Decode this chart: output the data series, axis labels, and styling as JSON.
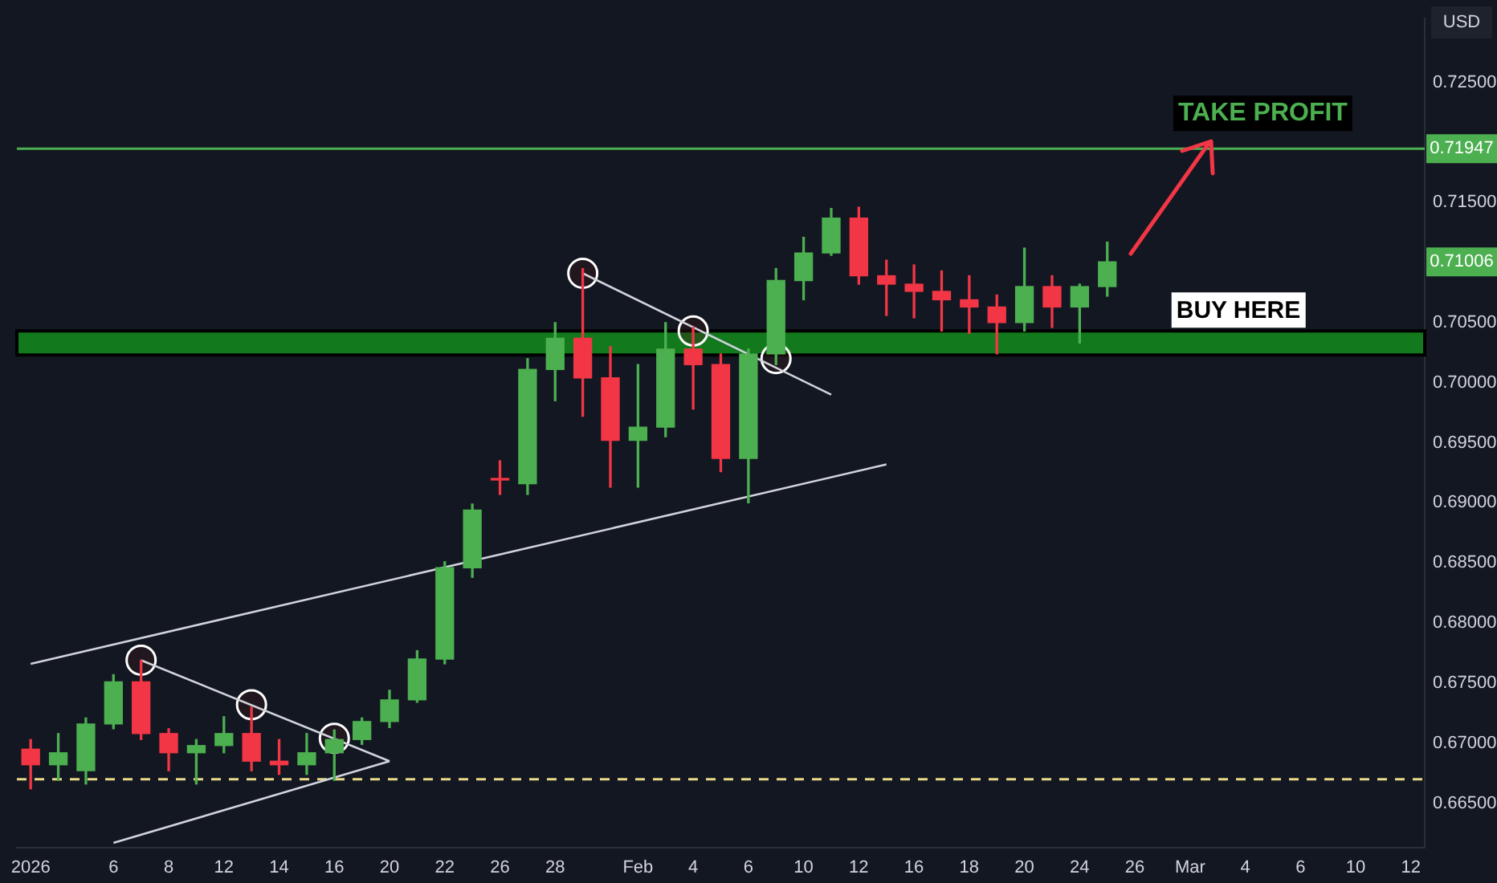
{
  "chart_data": {
    "type": "candlestick",
    "ylabel": "USD",
    "categories": [
      "2026",
      null,
      null,
      "6",
      null,
      "8",
      null,
      "12",
      null,
      "14",
      null,
      "16",
      null,
      "20",
      null,
      "22",
      null,
      "26",
      null,
      "28",
      null,
      null,
      "Feb",
      null,
      "4",
      null,
      "6",
      null,
      "10",
      null,
      "12",
      null,
      "16",
      null,
      "18",
      null,
      "20",
      null,
      "24",
      null,
      "26",
      null,
      "Mar",
      null,
      "4",
      null,
      "6",
      null,
      "10",
      null,
      "12"
    ],
    "ohlc": [
      [
        0.6695,
        0.6703,
        0.6662,
        0.6682
      ],
      [
        0.6682,
        0.6708,
        0.6669,
        0.6692
      ],
      [
        0.6677,
        0.6721,
        0.6666,
        0.6716
      ],
      [
        0.6716,
        0.6757,
        0.6712,
        0.6751
      ],
      [
        0.6751,
        0.6769,
        0.6703,
        0.6708
      ],
      [
        0.6708,
        0.6712,
        0.6677,
        0.6692
      ],
      [
        0.6692,
        0.6703,
        0.6666,
        0.6698
      ],
      [
        0.6698,
        0.6722,
        0.6692,
        0.6708
      ],
      [
        0.6708,
        0.673,
        0.6677,
        0.6685
      ],
      [
        0.6685,
        0.6703,
        0.6674,
        0.6682
      ],
      [
        0.6682,
        0.6708,
        0.6674,
        0.6692
      ],
      [
        0.6692,
        0.6711,
        0.6669,
        0.6703
      ],
      [
        0.6703,
        0.6721,
        0.6699,
        0.6718
      ],
      [
        0.6718,
        0.6744,
        0.6713,
        0.6736
      ],
      [
        0.6736,
        0.6777,
        0.6734,
        0.677
      ],
      [
        0.677,
        0.6851,
        0.6766,
        0.6846
      ],
      [
        0.6846,
        0.6899,
        0.6838,
        0.6894
      ],
      [
        0.692,
        0.6935,
        0.6907,
        0.6919
      ],
      [
        0.6916,
        0.702,
        0.6907,
        0.7011
      ],
      [
        0.7011,
        0.705,
        0.6985,
        0.7037
      ],
      [
        0.7037,
        0.7095,
        0.6972,
        0.7004
      ],
      [
        0.7004,
        0.703,
        0.6913,
        0.6952
      ],
      [
        0.6952,
        0.7015,
        0.6913,
        0.6963
      ],
      [
        0.6963,
        0.705,
        0.6955,
        0.7028
      ],
      [
        0.7028,
        0.7046,
        0.6978,
        0.7015
      ],
      [
        0.7015,
        0.7024,
        0.6926,
        0.6937
      ],
      [
        0.6937,
        0.7028,
        0.69,
        0.7024
      ],
      [
        0.7024,
        0.7095,
        0.7015,
        0.7085
      ],
      [
        0.7085,
        0.7121,
        0.7069,
        0.7108
      ],
      [
        0.7108,
        0.7145,
        0.7106,
        0.7137
      ],
      [
        0.7137,
        0.7146,
        0.7082,
        0.7089
      ],
      [
        0.7089,
        0.7102,
        0.7056,
        0.7082
      ],
      [
        0.7082,
        0.7098,
        0.7054,
        0.7076
      ],
      [
        0.7076,
        0.7093,
        0.7043,
        0.7069
      ],
      [
        0.7069,
        0.7089,
        0.7041,
        0.7063
      ],
      [
        0.7063,
        0.7073,
        0.7024,
        0.705
      ],
      [
        0.705,
        0.7112,
        0.7043,
        0.708
      ],
      [
        0.708,
        0.7089,
        0.7046,
        0.7063
      ],
      [
        0.7063,
        0.7082,
        0.7033,
        0.708
      ],
      [
        0.708,
        0.7117,
        0.7072,
        0.71006
      ],
      null,
      null,
      null,
      null,
      null,
      null,
      null,
      null,
      null,
      null,
      null
    ],
    "series": [
      {
        "type": "line",
        "color": "#d1d4dc",
        "values": [
          0.6766,
          null,
          null,
          null,
          null,
          null,
          null,
          null,
          null,
          null,
          null,
          null,
          null,
          null,
          null,
          null,
          null,
          null,
          null,
          null,
          null,
          null,
          null,
          null,
          null,
          null,
          null,
          null,
          null,
          null,
          null,
          0.6932,
          null,
          null,
          null,
          null,
          null,
          null,
          null,
          null,
          null,
          null,
          null,
          null,
          null,
          null,
          null,
          null,
          null,
          null,
          null
        ]
      },
      {
        "type": "line",
        "color": "#d1d4dc",
        "values": [
          null,
          null,
          null,
          0.6617,
          null,
          null,
          null,
          null,
          null,
          null,
          null,
          null,
          null,
          0.6685,
          null,
          null,
          null,
          null,
          null,
          null,
          null,
          null,
          null,
          null,
          null,
          null,
          null,
          null,
          null,
          null,
          null,
          null,
          null,
          null,
          null,
          null,
          null,
          null,
          null,
          null,
          null,
          null,
          null,
          null,
          null,
          null,
          null,
          null,
          null,
          null,
          null
        ]
      },
      {
        "type": "line",
        "color": "#d1d4dc",
        "values": [
          null,
          null,
          null,
          null,
          0.6769,
          null,
          null,
          null,
          null,
          null,
          null,
          null,
          null,
          0.6685,
          null,
          null,
          null,
          null,
          null,
          null,
          null,
          null,
          null,
          null,
          null,
          null,
          null,
          null,
          null,
          null,
          null,
          null,
          null,
          null,
          null,
          null,
          null,
          null,
          null,
          null,
          null,
          null,
          null,
          null,
          null,
          null,
          null,
          null,
          null,
          null,
          null
        ]
      },
      {
        "type": "line",
        "color": "#d1d4dc",
        "values": [
          null,
          null,
          null,
          null,
          null,
          null,
          null,
          null,
          null,
          null,
          null,
          null,
          null,
          null,
          null,
          null,
          null,
          null,
          null,
          null,
          0.7091,
          null,
          null,
          null,
          null,
          null,
          null,
          null,
          null,
          0.699,
          null,
          null,
          null,
          null,
          null,
          null,
          null,
          null,
          null,
          null,
          null,
          null,
          null,
          null,
          null,
          null,
          null,
          null,
          null,
          null,
          null
        ]
      },
      {
        "type": "scatter",
        "color": "#ffffff",
        "marker": "circle",
        "values": [
          null,
          null,
          null,
          null,
          0.6769,
          null,
          null,
          null,
          0.6732,
          null,
          null,
          0.6704,
          null,
          null,
          null,
          null,
          null,
          null,
          null,
          null,
          0.7091,
          null,
          null,
          null,
          0.7043,
          null,
          null,
          0.702,
          null,
          null,
          null,
          null,
          null,
          null,
          null,
          null,
          null,
          null,
          null,
          null,
          null,
          null,
          null,
          null,
          null,
          null,
          null,
          null,
          null,
          null,
          null
        ]
      }
    ],
    "ylim": [
      0.6613,
      0.7303
    ],
    "yticks": [
      {
        "value": 0.665,
        "label": "0.66500"
      },
      {
        "value": 0.67,
        "label": "0.67000"
      },
      {
        "value": 0.675,
        "label": "0.67500"
      },
      {
        "value": 0.68,
        "label": "0.68000"
      },
      {
        "value": 0.685,
        "label": "0.68500"
      },
      {
        "value": 0.69,
        "label": "0.69000"
      },
      {
        "value": 0.695,
        "label": "0.69500"
      },
      {
        "value": 0.7,
        "label": "0.70000"
      },
      {
        "value": 0.705,
        "label": "0.70500"
      },
      {
        "value": 0.71006,
        "label": "0.71006"
      },
      {
        "value": 0.715,
        "label": "0.71500"
      },
      {
        "value": 0.71947,
        "label": "0.71947"
      },
      {
        "value": 0.725,
        "label": "0.72500"
      }
    ],
    "ref_lines": [
      {
        "axis": "y",
        "value": 0.71947,
        "label": "TAKE PROFIT",
        "color": "#4caf50"
      },
      {
        "axis": "y",
        "value": 0.667,
        "color": "#e8d98a",
        "line_style": "dashed"
      }
    ],
    "bands": [
      {
        "axis": "y",
        "from": 0.7023,
        "to": 0.7043,
        "color": "#12791d"
      }
    ],
    "annotations": [
      "BUY HERE"
    ],
    "grid": false,
    "legend": false
  }
}
